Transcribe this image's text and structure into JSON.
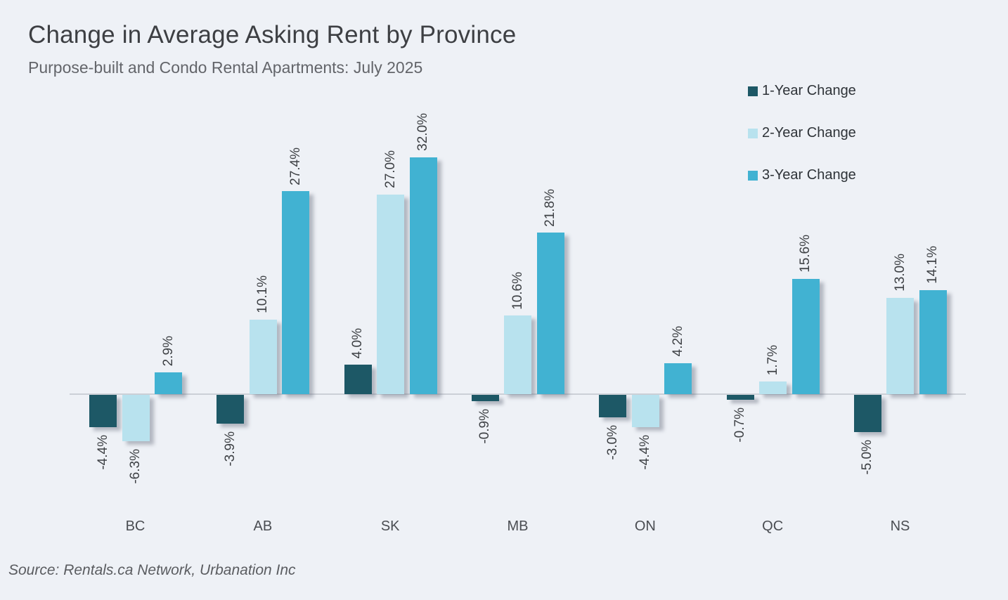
{
  "page": {
    "background": "#EEF1F6"
  },
  "header": {
    "title": "Change in Average Asking Rent by Province",
    "subtitle": "Purpose-built and Condo Rental Apartments: July 2025"
  },
  "footer": {
    "source": "Source: Rentals.ca Network, Urbanation Inc"
  },
  "legend": {
    "position": "top-right",
    "items": [
      {
        "label": "1-Year Change",
        "color": "#1D5866"
      },
      {
        "label": "2-Year Change",
        "color": "#B8E2EE"
      },
      {
        "label": "3-Year Change",
        "color": "#41B2D2"
      }
    ]
  },
  "chart_data": {
    "type": "bar",
    "title": "Change in Average Asking Rent by Province",
    "subtitle": "Purpose-built and Condo Rental Apartments: July 2025",
    "categories": [
      "BC",
      "AB",
      "SK",
      "MB",
      "ON",
      "QC",
      "NS"
    ],
    "series": [
      {
        "name": "1-Year Change",
        "color": "#1D5866",
        "values": [
          -4.4,
          -3.9,
          4.0,
          -0.9,
          -3.0,
          -0.7,
          -5.0
        ],
        "labels": [
          "-4.4%",
          "-3.9%",
          "4.0%",
          "-0.9%",
          "-3.0%",
          "-0.7%",
          "-5.0%"
        ]
      },
      {
        "name": "2-Year Change",
        "color": "#B8E2EE",
        "values": [
          -6.3,
          10.1,
          27.0,
          10.6,
          -4.4,
          1.7,
          13.0
        ],
        "labels": [
          "-6.3%",
          "10.1%",
          "27.0%",
          "10.6%",
          "-4.4%",
          "1.7%",
          "13.0%"
        ]
      },
      {
        "name": "3-Year Change",
        "color": "#41B2D2",
        "values": [
          2.9,
          27.4,
          32.0,
          21.8,
          4.2,
          15.6,
          14.1
        ],
        "labels": [
          "2.9%",
          "27.4%",
          "32.0%",
          "21.8%",
          "4.2%",
          "15.6%",
          "14.1%"
        ]
      }
    ],
    "value_label_rotation": 90,
    "value_label_format": "0.0%",
    "xlabel": "",
    "ylabel": "",
    "ylim": [
      -8,
      34
    ],
    "grid": false,
    "baseline": 0,
    "legend_position": "top-right",
    "source": "Source: Rentals.ca Network, Urbanation Inc"
  }
}
